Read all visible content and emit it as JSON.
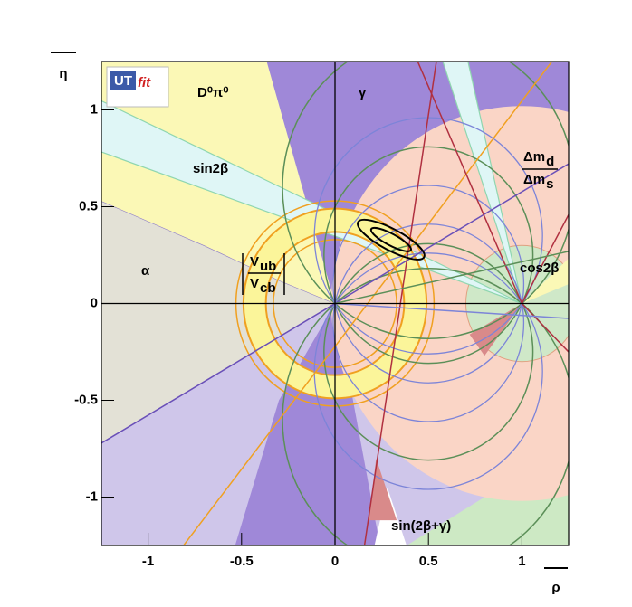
{
  "chart_data": {
    "type": "region",
    "xlabel": "ρ",
    "ylabel": "η",
    "xlim": [
      -1.25,
      1.25
    ],
    "ylim": [
      -1.25,
      1.25
    ],
    "xticks": [
      -1,
      -0.5,
      0,
      0.5,
      1
    ],
    "yticks": [
      -1,
      -0.5,
      0,
      0.5,
      1
    ],
    "logo": {
      "main": "UT",
      "accent": "fit"
    },
    "annotations": [
      {
        "text": "D⁰π⁰"
      },
      {
        "text": "γ"
      },
      {
        "text": "sin2β"
      },
      {
        "text": "α"
      },
      {
        "text": "V",
        "sub": "ub"
      },
      {
        "text": "V",
        "sub": "cb"
      },
      {
        "text": "Δm",
        "sub": "d"
      },
      {
        "text": "Δm",
        "sub": "s"
      },
      {
        "text": "cos2β"
      },
      {
        "text": "sin(2β+γ)"
      }
    ]
  }
}
